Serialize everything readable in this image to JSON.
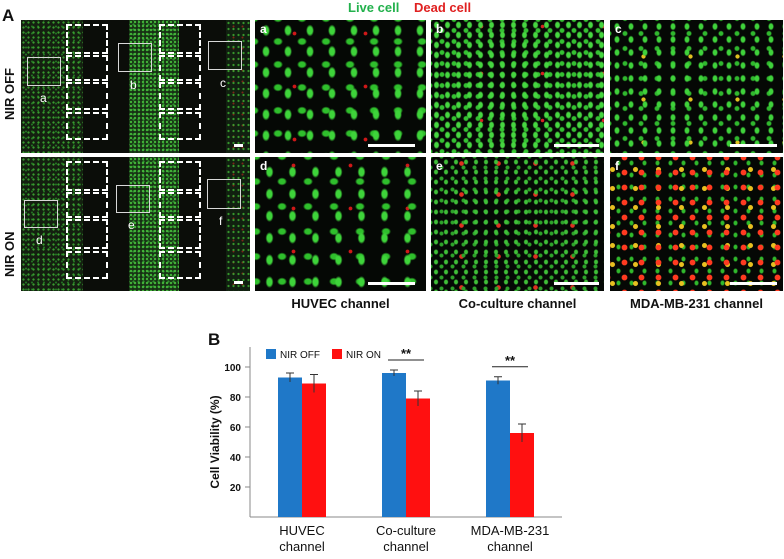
{
  "figure": {
    "panel_A_label": "A",
    "panel_B_label": "B",
    "legend_live": "Live cell",
    "legend_dead": "Dead cell",
    "row_labels": [
      "NIR OFF",
      "NIR ON"
    ],
    "overview_labels_top": [
      "a",
      "b",
      "c"
    ],
    "overview_labels_bottom": [
      "d",
      "e",
      "f"
    ],
    "micro_labels": [
      "a",
      "b",
      "c",
      "d",
      "e",
      "f"
    ],
    "channel_titles": [
      "HUVEC channel",
      "Co-culture channel",
      "MDA-MB-231 channel"
    ],
    "colors": {
      "live": "#22b14c",
      "dead": "#e02020"
    }
  },
  "chart_data": {
    "type": "bar",
    "categories": [
      "HUVEC channel",
      "Co-culture channel",
      "MDA-MB-231 channel"
    ],
    "category_lines": [
      [
        "HUVEC",
        "channel"
      ],
      [
        "Co-culture",
        "channel"
      ],
      [
        "MDA-MB-231",
        "channel"
      ]
    ],
    "series": [
      {
        "name": "NIR OFF",
        "values": [
          93,
          96,
          91
        ],
        "errors": [
          3,
          2,
          2.5
        ],
        "color": "#1f78c8"
      },
      {
        "name": "NIR ON",
        "values": [
          89,
          79,
          56
        ],
        "errors": [
          6,
          5,
          6
        ],
        "color": "#ff1010"
      }
    ],
    "ylabel": "Cell Viability (%)",
    "ylim": [
      0,
      100
    ],
    "yticks": [
      20,
      40,
      60,
      80,
      100
    ],
    "significance": [
      {
        "category": 1,
        "label": "**"
      },
      {
        "category": 2,
        "label": "**"
      }
    ],
    "legend_position": "top-left",
    "grid": false
  }
}
